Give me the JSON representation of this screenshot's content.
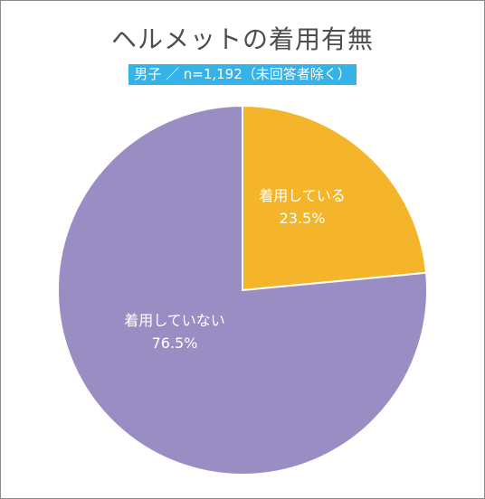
{
  "title": "ヘルメットの着用有無",
  "subtitle": "男子 ／ n=1,192（未回答者除く）",
  "chart_data": {
    "type": "pie",
    "title": "ヘルメットの着用有無",
    "subtitle": "男子 ／ n=1,192（未回答者除く）",
    "slices": [
      {
        "label": "着用している",
        "value": 23.5,
        "value_label": "23.5%",
        "color": "#f5b52a"
      },
      {
        "label": "着用していない",
        "value": 76.5,
        "value_label": "76.5%",
        "color": "#998dc3"
      }
    ]
  }
}
